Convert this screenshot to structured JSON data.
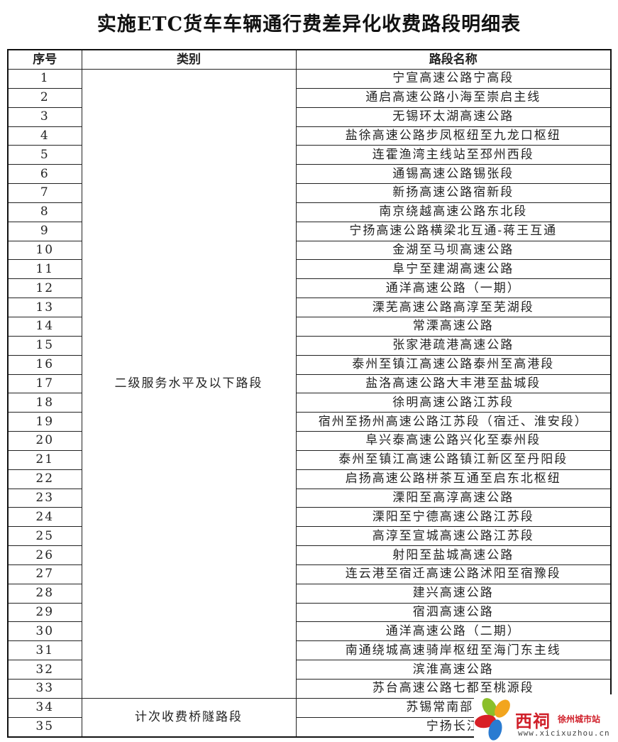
{
  "title": "实施ETC货车车辆通行费差异化收费路段明细表",
  "table": {
    "headers": [
      "序号",
      "类别",
      "路段名称"
    ],
    "groups": [
      {
        "category": "二级服务水平及以下路段",
        "rows": [
          {
            "no": "1",
            "name": "宁宣高速公路宁高段"
          },
          {
            "no": "2",
            "name": "通启高速公路小海至崇启主线"
          },
          {
            "no": "3",
            "name": "无锡环太湖高速公路"
          },
          {
            "no": "4",
            "name": "盐徐高速公路步凤枢纽至九龙口枢纽"
          },
          {
            "no": "5",
            "name": "连霍渔湾主线站至邳州西段"
          },
          {
            "no": "6",
            "name": "通锡高速公路锡张段"
          },
          {
            "no": "7",
            "name": "新扬高速公路宿新段"
          },
          {
            "no": "8",
            "name": "南京绕越高速公路东北段"
          },
          {
            "no": "9",
            "name": "宁扬高速公路横梁北互通-蒋王互通"
          },
          {
            "no": "10",
            "name": "金湖至马坝高速公路"
          },
          {
            "no": "11",
            "name": "阜宁至建湖高速公路"
          },
          {
            "no": "12",
            "name": "通洋高速公路（一期）"
          },
          {
            "no": "13",
            "name": "溧芜高速公路高淳至芜湖段"
          },
          {
            "no": "14",
            "name": "常溧高速公路"
          },
          {
            "no": "15",
            "name": "张家港疏港高速公路"
          },
          {
            "no": "16",
            "name": "泰州至镇江高速公路泰州至高港段"
          },
          {
            "no": "17",
            "name": "盐洛高速公路大丰港至盐城段"
          },
          {
            "no": "18",
            "name": "徐明高速公路江苏段"
          },
          {
            "no": "19",
            "name": "宿州至扬州高速公路江苏段（宿迁、淮安段）"
          },
          {
            "no": "20",
            "name": "阜兴泰高速公路兴化至泰州段"
          },
          {
            "no": "21",
            "name": "泰州至镇江高速公路镇江新区至丹阳段"
          },
          {
            "no": "22",
            "name": "启扬高速公路栟茶互通至启东北枢纽"
          },
          {
            "no": "23",
            "name": "溧阳至高淳高速公路"
          },
          {
            "no": "24",
            "name": "溧阳至宁德高速公路江苏段"
          },
          {
            "no": "25",
            "name": "高淳至宣城高速公路江苏段"
          },
          {
            "no": "26",
            "name": "射阳至盐城高速公路"
          },
          {
            "no": "27",
            "name": "连云港至宿迁高速公路沭阳至宿豫段"
          },
          {
            "no": "28",
            "name": "建兴高速公路"
          },
          {
            "no": "29",
            "name": "宿泗高速公路"
          },
          {
            "no": "30",
            "name": "通洋高速公路（二期）"
          },
          {
            "no": "31",
            "name": "南通绕城高速骑岸枢纽至海门东主线"
          },
          {
            "no": "32",
            "name": "滨淮高速公路"
          },
          {
            "no": "33",
            "name": "苏台高速公路七都至桃源段"
          }
        ]
      },
      {
        "category": "计次收费桥隧路段",
        "rows": [
          {
            "no": "34",
            "name": "苏锡常南部通道"
          },
          {
            "no": "35",
            "name": "宁扬长江"
          }
        ]
      }
    ]
  },
  "watermark": {
    "brand": "西祠",
    "city": "徐州城市站",
    "url": "www.xicixuzhou.cn"
  }
}
